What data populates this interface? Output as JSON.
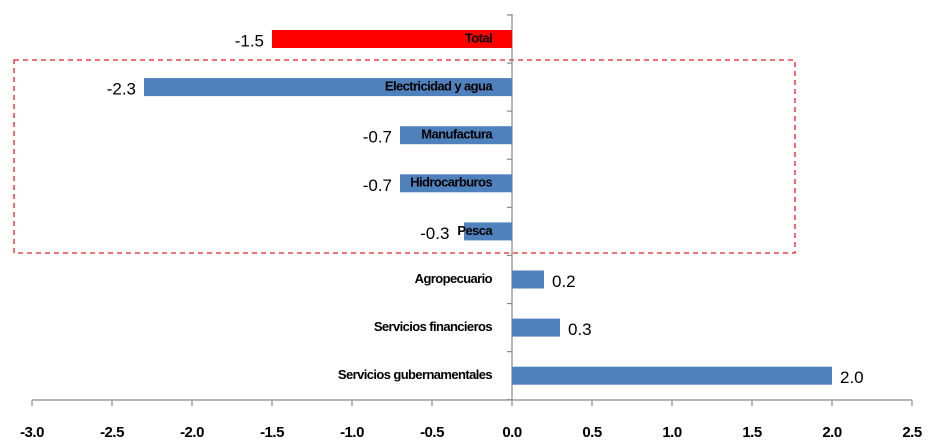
{
  "chart_data": {
    "type": "hbar",
    "categories": [
      "Total",
      "Electricidad y agua",
      "Manufactura",
      "Hidrocarburos",
      "Pesca",
      "Agropecuario",
      "Servicios financieros",
      "Servicios gubernamentales"
    ],
    "values": [
      -1.5,
      -2.3,
      -0.7,
      -0.7,
      -0.3,
      0.2,
      0.3,
      2.0
    ],
    "value_labels": [
      "-1.5",
      "-2.3",
      "-0.7",
      "-0.7",
      "-0.3",
      "0.2",
      "0.3",
      "2.0"
    ],
    "colors": [
      "#ff0000",
      "#4f81bd",
      "#4f81bd",
      "#4f81bd",
      "#4f81bd",
      "#4f81bd",
      "#4f81bd",
      "#4f81bd"
    ],
    "xlim": [
      -3.0,
      2.5
    ],
    "xticks": [
      {
        "value": -3.0,
        "label": "-3.0"
      },
      -2.5,
      {
        "value": -2.0,
        "label": "-2.0"
      },
      -1.5,
      {
        "value": -1.0,
        "label": "-1.0"
      },
      -0.5,
      {
        "value": 0.0,
        "label": "0.0"
      },
      0.5,
      {
        "value": 1.0,
        "label": "1.0"
      },
      1.5,
      {
        "value": 2.0,
        "label": "2.0"
      },
      2.5
    ]
  }
}
